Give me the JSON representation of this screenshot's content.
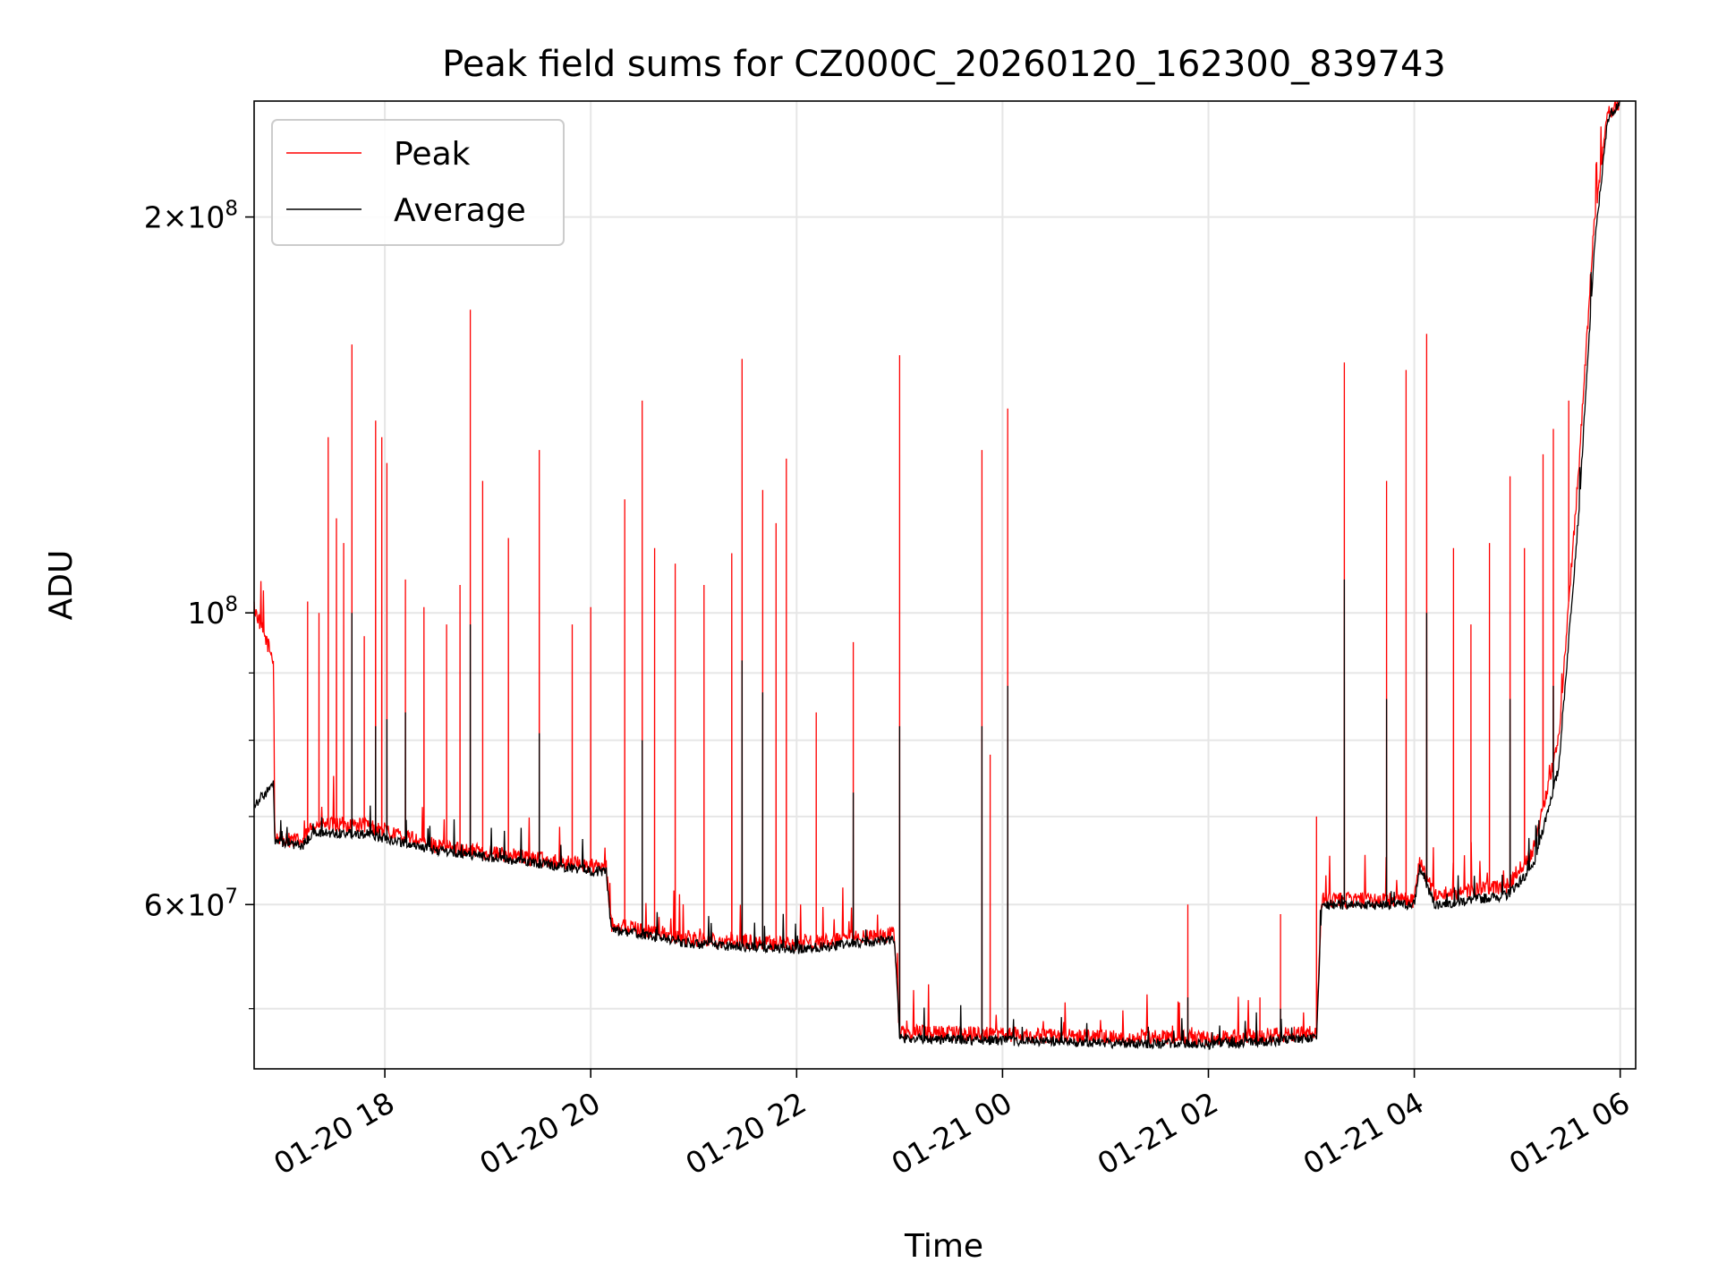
{
  "chart_data": {
    "type": "line",
    "title": "Peak field sums for CZ000C_20260120_162300_839743",
    "xlabel": "Time",
    "ylabel": "ADU",
    "y_scale": "log",
    "ylim": [
      45000000,
      245000000
    ],
    "x_unit": "hours since 01-20 00:00",
    "xlim": [
      16.73,
      30.15
    ],
    "grid": true,
    "legend_position": "upper left",
    "x_ticks": [
      {
        "value": 18,
        "label": "01-20 18"
      },
      {
        "value": 20,
        "label": "01-20 20"
      },
      {
        "value": 22,
        "label": "01-20 22"
      },
      {
        "value": 24,
        "label": "01-21 00"
      },
      {
        "value": 26,
        "label": "01-21 02"
      },
      {
        "value": 28,
        "label": "01-21 04"
      },
      {
        "value": 30,
        "label": "01-21 06"
      }
    ],
    "y_major_ticks": [
      {
        "value": 60000000,
        "mantissa": "6",
        "exponent": "7"
      },
      {
        "value": 100000000,
        "mantissa": "",
        "exponent": "8"
      },
      {
        "value": 200000000,
        "mantissa": "2",
        "exponent": "8"
      }
    ],
    "y_minor_ticks": [
      50000000,
      70000000,
      80000000,
      90000000
    ],
    "series": [
      {
        "name": "Peak",
        "color": "#ff0000",
        "baseline": [
          [
            16.73,
            101000000
          ],
          [
            16.92,
            92000000
          ],
          [
            16.93,
            67500000
          ],
          [
            17.2,
            67000000
          ],
          [
            17.3,
            69000000
          ],
          [
            17.8,
            69000000
          ],
          [
            18.5,
            66500000
          ],
          [
            19.5,
            65000000
          ],
          [
            20.15,
            64000000
          ],
          [
            20.2,
            58000000
          ],
          [
            21.0,
            56500000
          ],
          [
            22.0,
            56000000
          ],
          [
            22.5,
            56500000
          ],
          [
            22.95,
            57000000
          ],
          [
            23.0,
            48000000
          ],
          [
            24.0,
            47800000
          ],
          [
            25.0,
            47600000
          ],
          [
            26.0,
            47500000
          ],
          [
            26.5,
            47700000
          ],
          [
            27.05,
            48000000
          ],
          [
            27.1,
            60500000
          ],
          [
            28.0,
            60500000
          ],
          [
            28.05,
            65000000
          ],
          [
            28.2,
            61000000
          ],
          [
            28.9,
            62000000
          ],
          [
            29.15,
            66000000
          ],
          [
            29.4,
            80000000
          ],
          [
            29.6,
            130000000
          ],
          [
            29.75,
            200000000
          ],
          [
            29.88,
            240000000
          ],
          [
            30.0,
            245000000
          ]
        ],
        "spikes": [
          [
            17.25,
            102000000
          ],
          [
            17.36,
            100000000
          ],
          [
            17.45,
            136000000
          ],
          [
            17.53,
            118000000
          ],
          [
            17.6,
            113000000
          ],
          [
            17.68,
            160000000
          ],
          [
            17.8,
            96000000
          ],
          [
            17.91,
            140000000
          ],
          [
            17.97,
            136000000
          ],
          [
            18.02,
            130000000
          ],
          [
            18.2,
            106000000
          ],
          [
            18.38,
            101000000
          ],
          [
            18.6,
            98000000
          ],
          [
            18.73,
            105000000
          ],
          [
            18.83,
            170000000
          ],
          [
            18.95,
            126000000
          ],
          [
            19.2,
            114000000
          ],
          [
            19.5,
            133000000
          ],
          [
            19.82,
            98000000
          ],
          [
            20.0,
            101000000
          ],
          [
            20.33,
            122000000
          ],
          [
            20.5,
            145000000
          ],
          [
            20.62,
            112000000
          ],
          [
            20.82,
            109000000
          ],
          [
            21.1,
            105000000
          ],
          [
            21.37,
            111000000
          ],
          [
            21.47,
            156000000
          ],
          [
            21.67,
            124000000
          ],
          [
            21.8,
            117000000
          ],
          [
            21.9,
            131000000
          ],
          [
            22.19,
            84000000
          ],
          [
            22.55,
            95000000
          ],
          [
            23.0,
            157000000
          ],
          [
            23.8,
            133000000
          ],
          [
            23.88,
            78000000
          ],
          [
            24.05,
            143000000
          ],
          [
            25.8,
            60000000
          ],
          [
            26.5,
            51000000
          ],
          [
            26.7,
            59000000
          ],
          [
            27.05,
            70000000
          ],
          [
            27.32,
            155000000
          ],
          [
            27.73,
            126000000
          ],
          [
            27.92,
            153000000
          ],
          [
            28.12,
            163000000
          ],
          [
            28.38,
            112000000
          ],
          [
            28.55,
            98000000
          ],
          [
            28.73,
            113000000
          ],
          [
            28.93,
            127000000
          ],
          [
            29.07,
            112000000
          ],
          [
            29.25,
            132000000
          ],
          [
            29.35,
            138000000
          ],
          [
            29.5,
            145000000
          ]
        ]
      },
      {
        "name": "Average",
        "color": "#000000",
        "baseline": [
          [
            16.73,
            71500000
          ],
          [
            16.92,
            74000000
          ],
          [
            16.93,
            67000000
          ],
          [
            17.2,
            66500000
          ],
          [
            17.3,
            68000000
          ],
          [
            17.8,
            68000000
          ],
          [
            18.5,
            66000000
          ],
          [
            19.5,
            64500000
          ],
          [
            20.15,
            63500000
          ],
          [
            20.2,
            57500000
          ],
          [
            21.0,
            56000000
          ],
          [
            22.0,
            55500000
          ],
          [
            22.5,
            56000000
          ],
          [
            22.95,
            56500000
          ],
          [
            23.0,
            47500000
          ],
          [
            24.0,
            47300000
          ],
          [
            25.0,
            47100000
          ],
          [
            26.0,
            47000000
          ],
          [
            26.5,
            47200000
          ],
          [
            27.05,
            47500000
          ],
          [
            27.1,
            60000000
          ],
          [
            28.0,
            60000000
          ],
          [
            28.05,
            64000000
          ],
          [
            28.2,
            60000000
          ],
          [
            28.9,
            61000000
          ],
          [
            29.15,
            64000000
          ],
          [
            29.4,
            76000000
          ],
          [
            29.6,
            120000000
          ],
          [
            29.75,
            190000000
          ],
          [
            29.88,
            238000000
          ],
          [
            30.0,
            245000000
          ]
        ],
        "spikes": [
          [
            17.68,
            100000000
          ],
          [
            17.91,
            82000000
          ],
          [
            18.02,
            83000000
          ],
          [
            18.2,
            84000000
          ],
          [
            18.83,
            98000000
          ],
          [
            19.5,
            81000000
          ],
          [
            20.5,
            80000000
          ],
          [
            21.47,
            92000000
          ],
          [
            21.67,
            87000000
          ],
          [
            22.55,
            73000000
          ],
          [
            23.0,
            82000000
          ],
          [
            23.8,
            82000000
          ],
          [
            24.05,
            88000000
          ],
          [
            25.8,
            51000000
          ],
          [
            26.7,
            50000000
          ],
          [
            27.32,
            106000000
          ],
          [
            27.73,
            86000000
          ],
          [
            28.12,
            100000000
          ],
          [
            28.93,
            86000000
          ],
          [
            29.35,
            88000000
          ]
        ]
      }
    ]
  }
}
